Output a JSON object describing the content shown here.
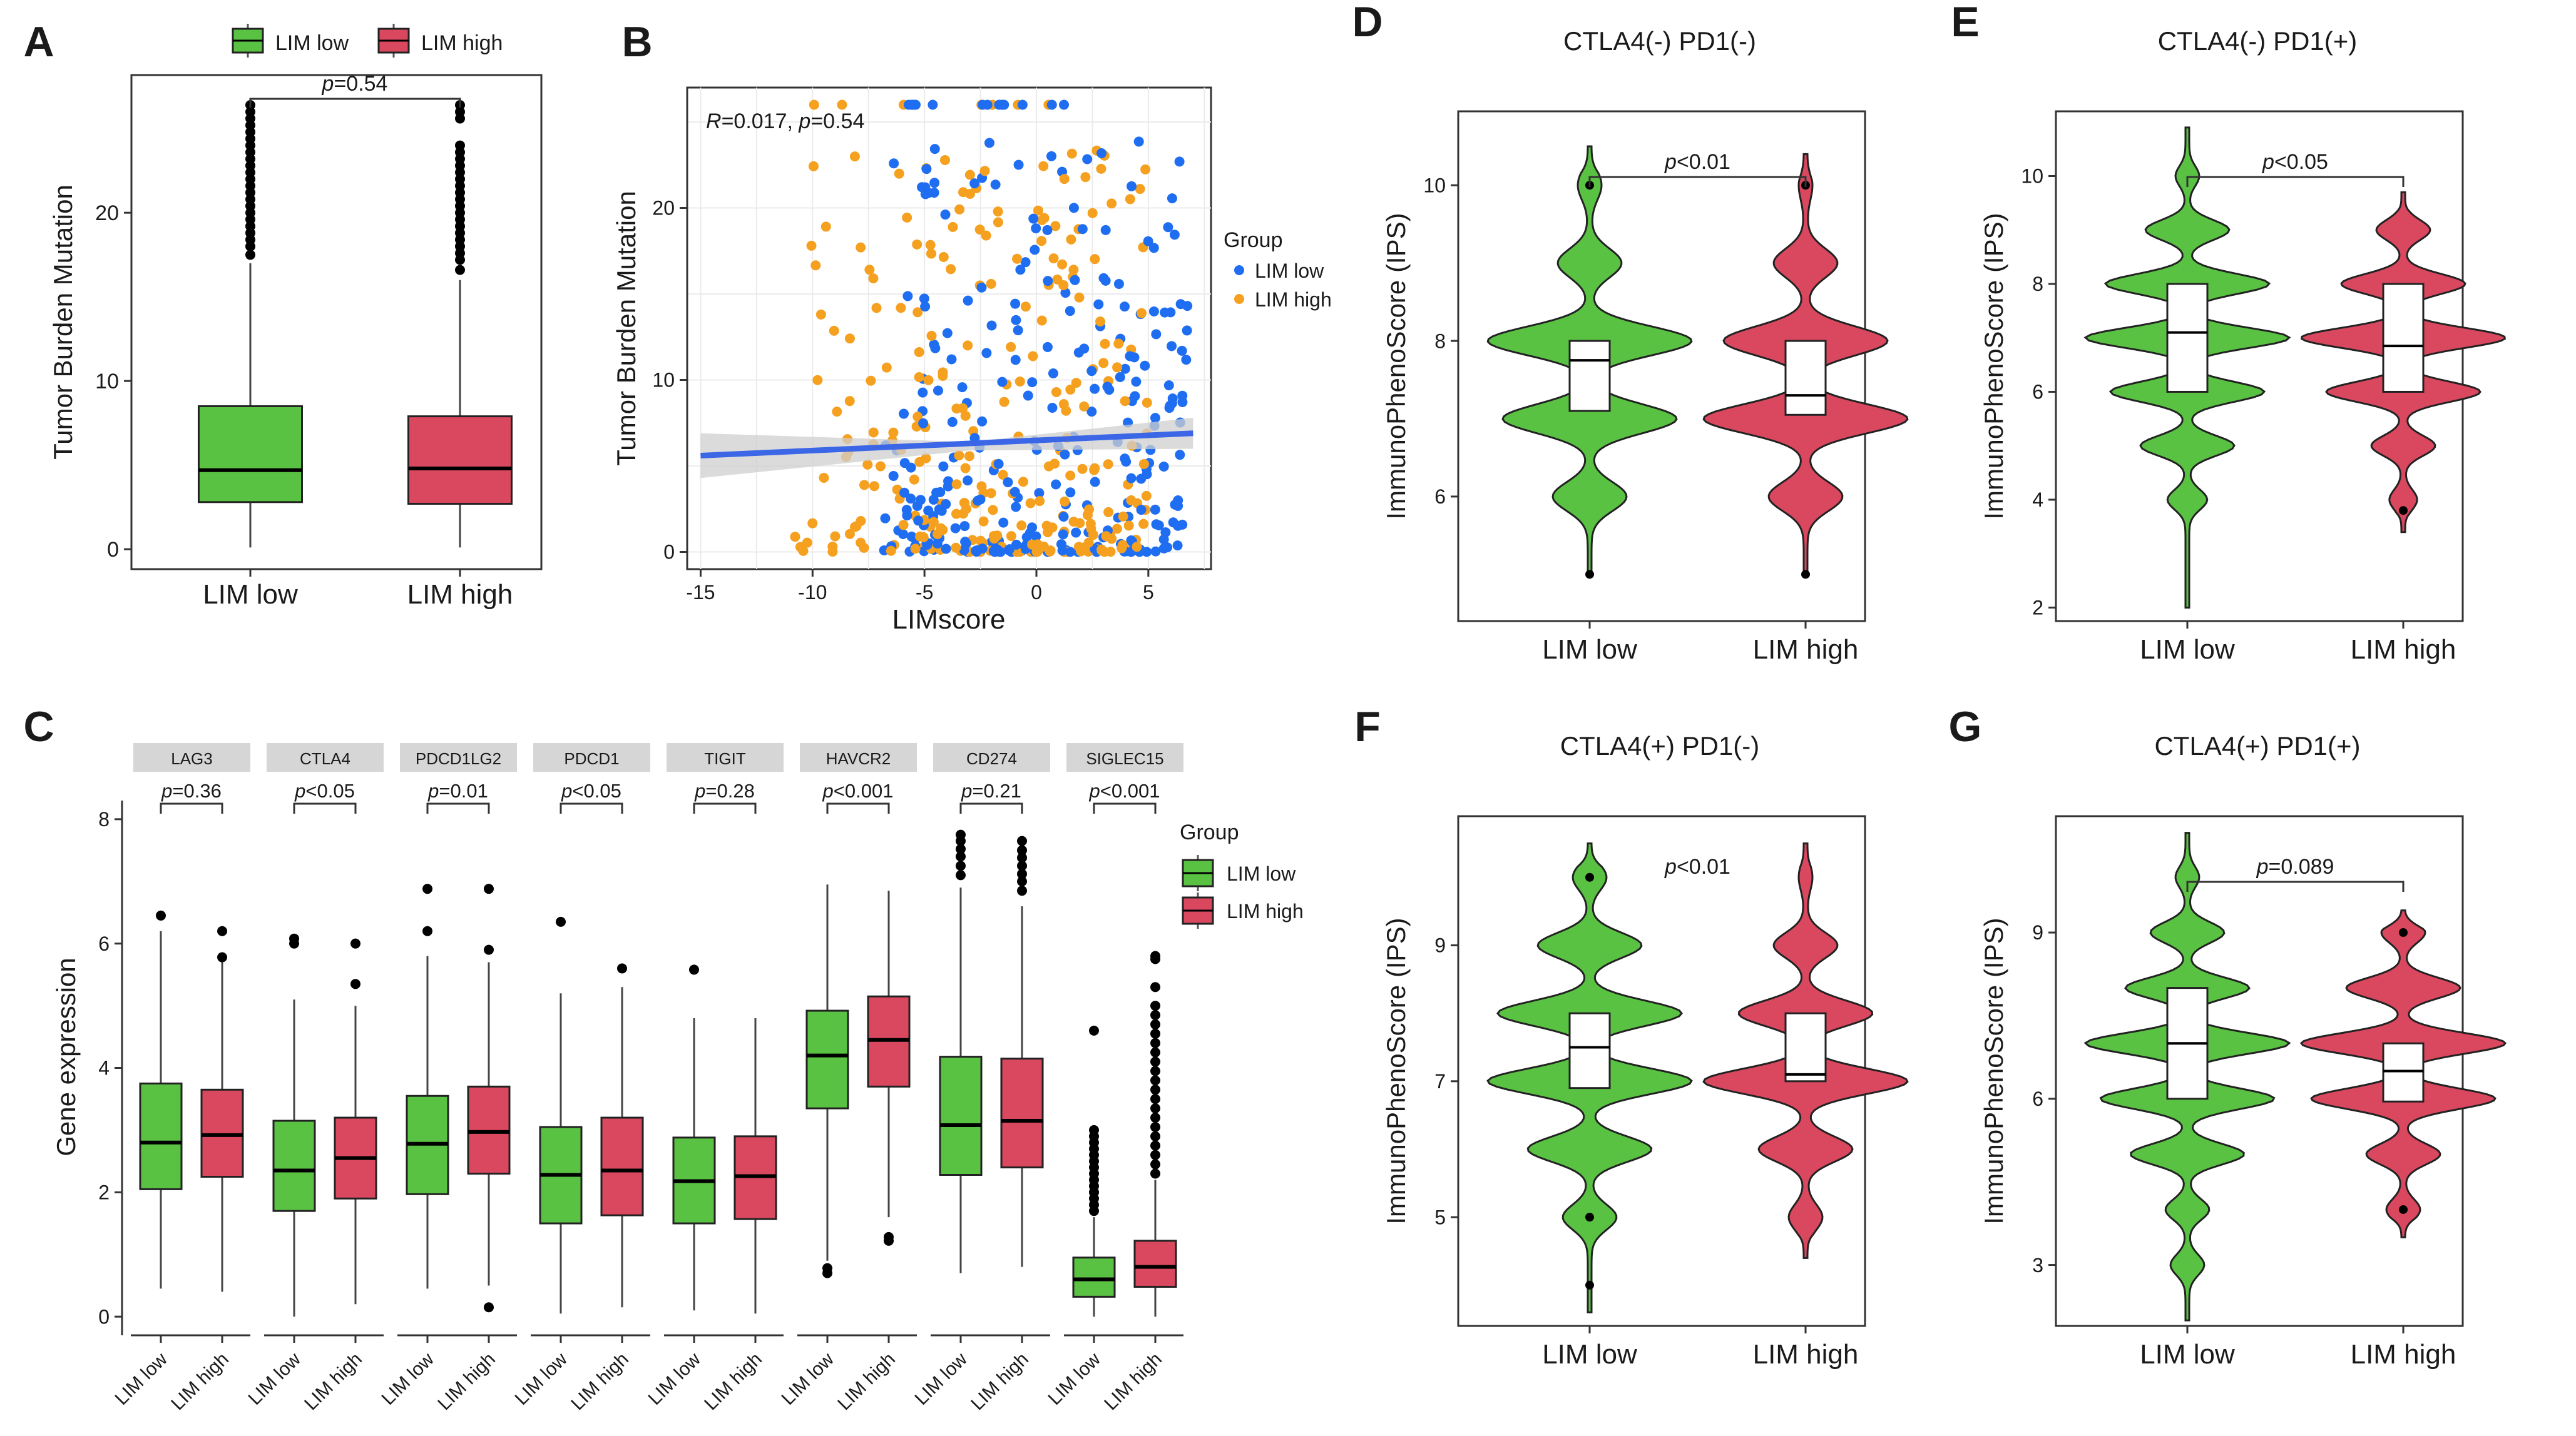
{
  "colors": {
    "low": "#5ac243",
    "high": "#d9485f",
    "blue_pts": "#1f6ef2",
    "orange_pts": "#f5a01f",
    "fit": "#3b67e6",
    "band": "#cfcfcf",
    "strip": "#d6d6d6"
  },
  "legend": {
    "low": "LIM low",
    "high": "LIM high",
    "group_title": "Group"
  },
  "chart_data": [
    {
      "id": "A",
      "type": "box",
      "panel_label": "A",
      "ylabel": "Tumor Burden Mutation",
      "xlabel": "",
      "ylim": [
        -1,
        28
      ],
      "yticks": [
        0,
        10,
        20
      ],
      "categories": [
        "LIM low",
        "LIM high"
      ],
      "pvalue": "=0.54",
      "boxes": [
        {
          "group": "LIM low",
          "min": 0.1,
          "q1": 2.8,
          "median": 4.7,
          "q3": 8.5,
          "whisker_high": 17,
          "outliers": [
            17.5,
            18,
            18.4,
            18.8,
            19.2,
            19.6,
            20,
            20.4,
            20.8,
            21.2,
            21.6,
            22,
            22.4,
            22.8,
            23.2,
            23.6,
            24,
            24.4,
            24.8,
            25.2,
            25.6,
            26,
            26.4
          ]
        },
        {
          "group": "LIM high",
          "min": 0.1,
          "q1": 2.7,
          "median": 4.8,
          "q3": 7.9,
          "whisker_high": 16,
          "outliers": [
            16.6,
            17.2,
            17.6,
            18,
            18.4,
            18.8,
            19.2,
            19.6,
            20,
            20.4,
            20.8,
            21.2,
            21.6,
            22,
            22.4,
            22.8,
            23.2,
            23.6,
            24,
            25.6,
            26,
            26.4
          ]
        }
      ]
    },
    {
      "id": "B",
      "type": "scatter",
      "panel_label": "B",
      "ylabel": "Tumor Burden Mutation",
      "xlabel": "LIMscore",
      "xlim": [
        -15.6,
        7.8
      ],
      "ylim": [
        -1,
        27
      ],
      "xticks": [
        -15,
        -10,
        -5,
        0,
        5
      ],
      "yticks": [
        0,
        10,
        20
      ],
      "annotation": "=0.017,",
      "annotation_p": "=0.54",
      "legend_title": "Group",
      "series": [
        {
          "name": "LIM low",
          "color": "#1f6ef2"
        },
        {
          "name": "LIM high",
          "color": "#f5a01f"
        }
      ],
      "fit": {
        "x0": -15,
        "y0": 5.6,
        "x1": 7,
        "y1": 6.9
      }
    },
    {
      "id": "C",
      "type": "box-facet",
      "panel_label": "C",
      "ylabel": "Gene expression",
      "ylim": [
        -0.3,
        8.3
      ],
      "yticks": [
        0,
        2,
        4,
        6,
        8
      ],
      "legend_title": "Group",
      "facets": [
        {
          "gene": "LAG3",
          "p": "=0.36",
          "low": {
            "min": 0.45,
            "q1": 2.05,
            "median": 2.8,
            "q3": 3.75,
            "max": 6.2,
            "outliers": [
              6.45
            ]
          },
          "high": {
            "min": 0.4,
            "q1": 2.25,
            "median": 2.92,
            "q3": 3.65,
            "max": 5.7,
            "outliers": [
              5.78,
              6.2
            ]
          }
        },
        {
          "gene": "CTLA4",
          "p": "<0.05",
          "low": {
            "min": 0.0,
            "q1": 1.7,
            "median": 2.35,
            "q3": 3.15,
            "max": 5.1,
            "outliers": [
              6.0,
              6.08
            ]
          },
          "high": {
            "min": 0.2,
            "q1": 1.9,
            "median": 2.55,
            "q3": 3.2,
            "max": 5.0,
            "outliers": [
              5.35,
              6.0
            ]
          }
        },
        {
          "gene": "PDCD1LG2",
          "p": "=0.01",
          "low": {
            "min": 0.45,
            "q1": 1.97,
            "median": 2.78,
            "q3": 3.55,
            "max": 5.8,
            "outliers": [
              6.2,
              6.88
            ]
          },
          "high": {
            "min": 0.5,
            "q1": 2.3,
            "median": 2.97,
            "q3": 3.7,
            "max": 5.7,
            "outliers": [
              5.9,
              6.88,
              0.15
            ]
          }
        },
        {
          "gene": "PDCD1",
          "p": "<0.05",
          "low": {
            "min": 0.05,
            "q1": 1.5,
            "median": 2.28,
            "q3": 3.05,
            "max": 5.2,
            "outliers": [
              6.35
            ]
          },
          "high": {
            "min": 0.15,
            "q1": 1.63,
            "median": 2.35,
            "q3": 3.2,
            "max": 5.3,
            "outliers": [
              5.6
            ]
          }
        },
        {
          "gene": "TIGIT",
          "p": "=0.28",
          "low": {
            "min": 0.1,
            "q1": 1.5,
            "median": 2.18,
            "q3": 2.88,
            "max": 4.8,
            "outliers": [
              5.58
            ]
          },
          "high": {
            "min": 0.05,
            "q1": 1.57,
            "median": 2.26,
            "q3": 2.9,
            "max": 4.8,
            "outliers": []
          }
        },
        {
          "gene": "HAVCR2",
          "p": "<0.001",
          "low": {
            "min": 0.9,
            "q1": 3.35,
            "median": 4.2,
            "q3": 4.92,
            "max": 6.95,
            "outliers": [
              0.7,
              0.78
            ]
          },
          "high": {
            "min": 1.6,
            "q1": 3.7,
            "median": 4.45,
            "q3": 5.15,
            "max": 6.85,
            "outliers": [
              1.22,
              1.28
            ]
          }
        },
        {
          "gene": "CD274",
          "p": "=0.21",
          "low": {
            "min": 0.7,
            "q1": 2.28,
            "median": 3.08,
            "q3": 4.18,
            "max": 6.9,
            "outliers": [
              7.1,
              7.25,
              7.4,
              7.52,
              7.65,
              7.75
            ]
          },
          "high": {
            "min": 0.8,
            "q1": 2.4,
            "median": 3.15,
            "q3": 4.15,
            "max": 6.6,
            "outliers": [
              6.85,
              7.0,
              7.12,
              7.25,
              7.38,
              7.5,
              7.65
            ]
          }
        },
        {
          "gene": "SIGLEC15",
          "p": "<0.001",
          "low": {
            "min": 0.0,
            "q1": 0.32,
            "median": 0.6,
            "q3": 0.95,
            "max": 1.6,
            "outliers": [
              1.7,
              1.8,
              1.9,
              2.0,
              2.1,
              2.2,
              2.3,
              2.4,
              2.5,
              2.6,
              2.7,
              2.8,
              2.9,
              3.0,
              4.6
            ]
          },
          "high": {
            "min": 0.0,
            "q1": 0.48,
            "median": 0.8,
            "q3": 1.22,
            "max": 2.2,
            "outliers": [
              2.3,
              2.45,
              2.6,
              2.75,
              2.9,
              3.05,
              3.2,
              3.35,
              3.5,
              3.65,
              3.8,
              3.95,
              4.1,
              4.25,
              4.4,
              4.55,
              4.7,
              4.85,
              5.0,
              5.3,
              5.75,
              5.8
            ]
          }
        }
      ]
    },
    {
      "id": "D",
      "type": "violin",
      "panel_label": "D",
      "title": "CTLA4(-) PD1(-)",
      "ylabel": "ImmunoPhenoScore (IPS)",
      "ylim": [
        4.4,
        10.95
      ],
      "yticks": [
        6,
        8,
        10
      ],
      "categories": [
        "LIM low",
        "LIM high"
      ],
      "p": "<0.01",
      "bracket": true,
      "violins": [
        {
          "group": "LIM low",
          "ymin": 5.0,
          "ymax": 10.5,
          "q1": 7.1,
          "median": 7.75,
          "q3": 8.0,
          "modes": [
            [
              6,
              0.35
            ],
            [
              7,
              0.85
            ],
            [
              8,
              1.0
            ],
            [
              9,
              0.3
            ],
            [
              10,
              0.1
            ]
          ],
          "points": [
            5.0,
            10.0
          ]
        },
        {
          "group": "LIM high",
          "ymin": 5.0,
          "ymax": 10.4,
          "q1": 7.05,
          "median": 7.3,
          "q3": 8.0,
          "modes": [
            [
              6,
              0.35
            ],
            [
              7,
              1.0
            ],
            [
              8,
              0.8
            ],
            [
              9,
              0.3
            ],
            [
              10,
              0.05
            ]
          ],
          "points": [
            5.0,
            10.0
          ]
        }
      ]
    },
    {
      "id": "E",
      "type": "violin",
      "panel_label": "E",
      "title": "CTLA4(-) PD1(+)",
      "ylabel": "ImmunoPhenoScore (IPS)",
      "ylim": [
        1.75,
        11.2
      ],
      "yticks": [
        2,
        4,
        6,
        8,
        10
      ],
      "categories": [
        "LIM low",
        "LIM high"
      ],
      "p": "<0.05",
      "bracket": true,
      "violins": [
        {
          "group": "LIM low",
          "ymin": 2.0,
          "ymax": 10.9,
          "q1": 6.0,
          "median": 7.1,
          "q3": 8.0,
          "modes": [
            [
              4,
              0.18
            ],
            [
              5,
              0.45
            ],
            [
              6,
              0.75
            ],
            [
              7,
              1.0
            ],
            [
              8,
              0.8
            ],
            [
              9,
              0.4
            ],
            [
              10,
              0.1
            ]
          ],
          "points": []
        },
        {
          "group": "LIM high",
          "ymin": 3.4,
          "ymax": 9.7,
          "q1": 6.0,
          "median": 6.85,
          "q3": 8.0,
          "modes": [
            [
              4,
              0.12
            ],
            [
              5,
              0.3
            ],
            [
              6,
              0.75
            ],
            [
              7,
              1.0
            ],
            [
              8,
              0.6
            ],
            [
              9,
              0.25
            ]
          ],
          "points": [
            3.8
          ]
        }
      ]
    },
    {
      "id": "F",
      "type": "violin",
      "panel_label": "F",
      "title": "CTLA4(+) PD1(-)",
      "ylabel": "ImmunoPhenoScore (IPS)",
      "ylim": [
        3.4,
        10.9
      ],
      "yticks": [
        5,
        7,
        9
      ],
      "categories": [
        "LIM low",
        "LIM high"
      ],
      "p": "<0.01",
      "bracket": false,
      "violins": [
        {
          "group": "LIM low",
          "ymin": 3.6,
          "ymax": 10.5,
          "q1": 6.9,
          "median": 7.5,
          "q3": 8.0,
          "modes": [
            [
              5,
              0.25
            ],
            [
              6,
              0.6
            ],
            [
              7,
              1.0
            ],
            [
              8,
              0.9
            ],
            [
              9,
              0.5
            ],
            [
              10,
              0.15
            ]
          ],
          "points": [
            4.0,
            5.0,
            10.0
          ]
        },
        {
          "group": "LIM high",
          "ymin": 4.4,
          "ymax": 10.5,
          "q1": 7.0,
          "median": 7.1,
          "q3": 8.0,
          "modes": [
            [
              5,
              0.15
            ],
            [
              6,
              0.45
            ],
            [
              7,
              1.0
            ],
            [
              8,
              0.65
            ],
            [
              9,
              0.3
            ],
            [
              10,
              0.05
            ]
          ],
          "points": []
        }
      ]
    },
    {
      "id": "G",
      "type": "violin",
      "panel_label": "G",
      "title": "CTLA4(+) PD1(+)",
      "ylabel": "ImmunoPhenoScore (IPS)",
      "ylim": [
        1.9,
        11.1
      ],
      "yticks": [
        3,
        6,
        9
      ],
      "categories": [
        "LIM low",
        "LIM high"
      ],
      "p": "=0.089",
      "bracket": true,
      "violins": [
        {
          "group": "LIM low",
          "ymin": 2.0,
          "ymax": 10.8,
          "q1": 6.0,
          "median": 7.0,
          "q3": 8.0,
          "modes": [
            [
              3,
              0.15
            ],
            [
              4,
              0.2
            ],
            [
              5,
              0.55
            ],
            [
              6,
              0.85
            ],
            [
              7,
              1.0
            ],
            [
              8,
              0.6
            ],
            [
              9,
              0.35
            ],
            [
              10,
              0.1
            ]
          ],
          "points": []
        },
        {
          "group": "LIM high",
          "ymin": 3.5,
          "ymax": 9.4,
          "q1": 5.95,
          "median": 6.5,
          "q3": 7.0,
          "modes": [
            [
              4,
              0.15
            ],
            [
              5,
              0.35
            ],
            [
              6,
              0.9
            ],
            [
              7,
              1.0
            ],
            [
              8,
              0.55
            ],
            [
              9,
              0.2
            ]
          ],
          "points": [
            4.0,
            9.0
          ]
        }
      ]
    }
  ]
}
